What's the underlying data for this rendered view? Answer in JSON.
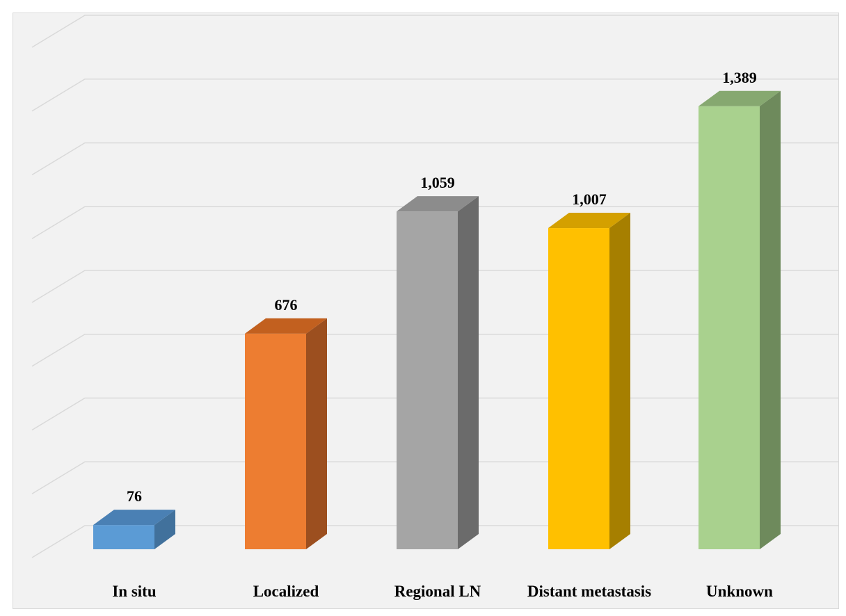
{
  "chart_data": {
    "type": "bar",
    "style": "3d-column",
    "categories": [
      "In situ",
      "Localized",
      "Regional LN",
      "Distant metastasis",
      "Unknown"
    ],
    "values": [
      76,
      676,
      1059,
      1007,
      1389
    ],
    "data_labels": [
      "76",
      "676",
      "1,059",
      "1,007",
      "1,389"
    ],
    "ylim": [
      0,
      1600
    ],
    "grid": true,
    "legend": "none",
    "colors": {
      "front": [
        "#5b9bd5",
        "#ed7d31",
        "#a5a5a5",
        "#ffc000",
        "#a9d18e"
      ],
      "side": [
        "#41719c",
        "#9c4f1f",
        "#6b6b6b",
        "#a67f00",
        "#6e8a5c"
      ],
      "top": [
        "#4a80b4",
        "#c2601f",
        "#8c8c8c",
        "#d4a000",
        "#86a870"
      ],
      "background": "#f2f2f2",
      "gridline": "#d9d9d9"
    }
  }
}
